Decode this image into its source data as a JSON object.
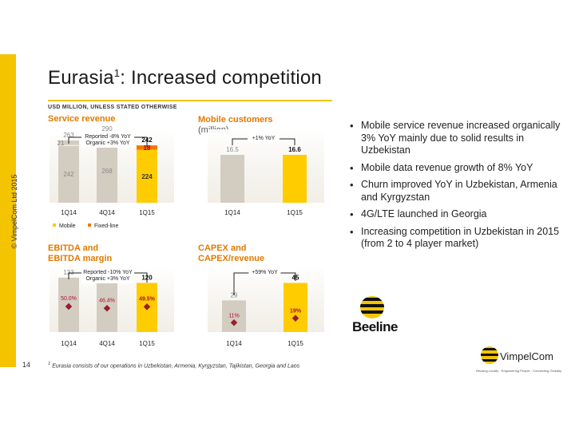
{
  "page": {
    "title": "Eurasia",
    "title_sup": "1",
    "title_rest": ": Increased competition",
    "units": "USD MILLION, UNLESS STATED OTHERWISE",
    "copyright": "© VimpelCom Ltd 2015",
    "page_number": "14",
    "footnote_sup": "1",
    "footnote": "Eurasia consists of our operations in Uzbekistan, Armenia, Kyrgyzstan, Tajikistan, Georgia and Laos"
  },
  "sections": {
    "service_revenue": {
      "title": "Service revenue"
    },
    "mobile_customers": {
      "title": "Mobile customers",
      "subtitle": "(million)"
    },
    "ebitda": {
      "title_line1": "EBITDA and",
      "title_line2": "EBITDA margin"
    },
    "capex": {
      "title_line1": "CAPEX and",
      "title_line2": "CAPEX/revenue"
    }
  },
  "bullets": [
    "Mobile service revenue increased organically 3% YoY mainly due to solid results in Uzbekistan",
    "Mobile data revenue growth of 8% YoY",
    "Churn improved YoY in Uzbekistan, Armenia and Kyrgyzstan",
    "4G/LTE launched in Georgia",
    "Increasing competition in Uzbekistan in 2015 (from 2 to 4 player market)"
  ],
  "logos": {
    "beeline": "Beeline",
    "vimpelcom": "VimpelCom",
    "vimpelcom_tagline": "Reusing Locally · Empowering People · Connecting Globally"
  },
  "colors": {
    "accent_yellow": "#f5c400",
    "title_orange": "#e07a00",
    "bar_grey": "#d3ccc0",
    "bar_yellow": "#ffcc00",
    "fixed_orange": "#f07800",
    "marker_red": "#9b1b2e"
  },
  "chart_data": [
    {
      "id": "service_revenue",
      "type": "bar",
      "stacked": true,
      "categories": [
        "1Q14",
        "4Q14",
        "1Q15"
      ],
      "series": [
        {
          "name": "Mobile",
          "values": [
            242,
            268,
            224
          ]
        },
        {
          "name": "Fixed-line",
          "values": [
            21,
            21,
            18
          ]
        }
      ],
      "totals": [
        263,
        290,
        242
      ],
      "annotation": [
        "Reported -8% YoY",
        "Organic +3% YoY"
      ],
      "legend": [
        "Mobile",
        "Fixed-line"
      ]
    },
    {
      "id": "mobile_customers",
      "type": "bar",
      "categories": [
        "1Q14",
        "1Q15"
      ],
      "values": [
        16.5,
        16.6
      ],
      "value_labels": [
        "16.5",
        "16.6"
      ],
      "annotation": [
        "+1% YoY"
      ]
    },
    {
      "id": "ebitda",
      "type": "bar",
      "categories": [
        "1Q14",
        "4Q14",
        "1Q15"
      ],
      "values": [
        133,
        134,
        120
      ],
      "margin": [
        50.0,
        46.4,
        49.5
      ],
      "margin_labels": [
        "50.0%",
        "46.4%",
        "49.5%"
      ],
      "annotation": [
        "Reported -10% YoY",
        "Organic +3% YoY"
      ]
    },
    {
      "id": "capex",
      "type": "bar",
      "categories": [
        "1Q14",
        "1Q15"
      ],
      "values": [
        29,
        45
      ],
      "ratio": [
        11,
        19
      ],
      "ratio_labels": [
        "11%",
        "19%"
      ],
      "annotation": [
        "+59% YoY"
      ]
    }
  ]
}
